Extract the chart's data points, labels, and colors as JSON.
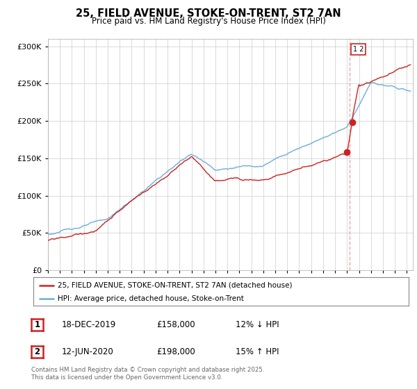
{
  "title": "25, FIELD AVENUE, STOKE-ON-TRENT, ST2 7AN",
  "subtitle": "Price paid vs. HM Land Registry's House Price Index (HPI)",
  "ylabel_ticks": [
    "£0",
    "£50K",
    "£100K",
    "£150K",
    "£200K",
    "£250K",
    "£300K"
  ],
  "ytick_values": [
    0,
    50000,
    100000,
    150000,
    200000,
    250000,
    300000
  ],
  "ylim": [
    0,
    310000
  ],
  "xlim_start": 1995.0,
  "xlim_end": 2025.5,
  "hpi_color": "#6baed6",
  "price_color": "#cc2222",
  "dashed_color": "#e8a0a0",
  "transaction1_date": 2019.96,
  "transaction1_price": 158000,
  "transaction2_date": 2020.45,
  "transaction2_price": 198000,
  "legend_house": "25, FIELD AVENUE, STOKE-ON-TRENT, ST2 7AN (detached house)",
  "legend_hpi": "HPI: Average price, detached house, Stoke-on-Trent",
  "table_rows": [
    [
      "1",
      "18-DEC-2019",
      "£158,000",
      "12% ↓ HPI"
    ],
    [
      "2",
      "12-JUN-2020",
      "£198,000",
      "15% ↑ HPI"
    ]
  ],
  "footnote": "Contains HM Land Registry data © Crown copyright and database right 2025.\nThis data is licensed under the Open Government Licence v3.0.",
  "label_box_color": "#cc2222"
}
